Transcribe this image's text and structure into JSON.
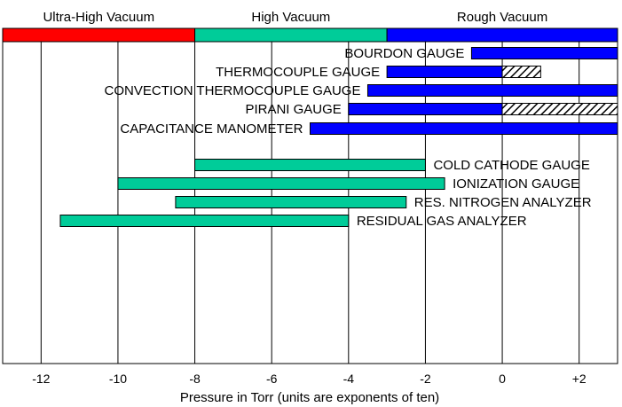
{
  "chart_data": {
    "type": "bar",
    "orientation": "horizontal-range",
    "xlabel": "Pressure in Torr (units are exponents of ten)",
    "xlim": [
      -13,
      3
    ],
    "ticks": [
      {
        "value": -12,
        "label": "-12"
      },
      {
        "value": -10,
        "label": "-10"
      },
      {
        "value": -8,
        "label": "-8"
      },
      {
        "value": -6,
        "label": "-6"
      },
      {
        "value": -4,
        "label": "-4"
      },
      {
        "value": -2,
        "label": "-2"
      },
      {
        "value": 0,
        "label": "0"
      },
      {
        "value": 2,
        "label": "+2"
      }
    ],
    "ranges": [
      {
        "label": "Ultra-High Vacuum",
        "from": -13,
        "to": -8,
        "color": "#ff0000"
      },
      {
        "label": "High Vacuum",
        "from": -8,
        "to": -3,
        "color": "#00cc99"
      },
      {
        "label": "Rough Vacuum",
        "from": -3,
        "to": 3,
        "color": "#0000ff"
      }
    ],
    "gauges": [
      {
        "name": "BOURDON GAUGE",
        "from": -0.8,
        "to": 3,
        "color": "#0000ff",
        "label_side": "left"
      },
      {
        "name": "THERMOCOUPLE GAUGE",
        "from": -3,
        "to": 0,
        "extended_to": 1,
        "color": "#0000ff",
        "label_side": "left"
      },
      {
        "name": "CONVECTION THERMOCOUPLE GAUGE",
        "from": -3.5,
        "to": 3,
        "color": "#0000ff",
        "label_side": "left"
      },
      {
        "name": "PIRANI GAUGE",
        "from": -4,
        "to": 0,
        "extended_to": 3,
        "color": "#0000ff",
        "label_side": "left"
      },
      {
        "name": "CAPACITANCE MANOMETER",
        "from": -5,
        "to": 3,
        "color": "#0000ff",
        "label_side": "left"
      },
      {
        "name": "COLD CATHODE GAUGE",
        "from": -8,
        "to": -2,
        "color": "#00cc99",
        "label_side": "right"
      },
      {
        "name": "IONIZATION GAUGE",
        "from": -10,
        "to": -1.5,
        "color": "#00cc99",
        "label_side": "right"
      },
      {
        "name": "RES. NITROGEN ANALYZER",
        "from": -8.5,
        "to": -2.5,
        "color": "#00cc99",
        "label_side": "right"
      },
      {
        "name": "RESIDUAL GAS ANALYZER",
        "from": -11.5,
        "to": -4,
        "color": "#00cc99",
        "label_side": "right"
      }
    ],
    "grid": true,
    "legend": "none"
  }
}
